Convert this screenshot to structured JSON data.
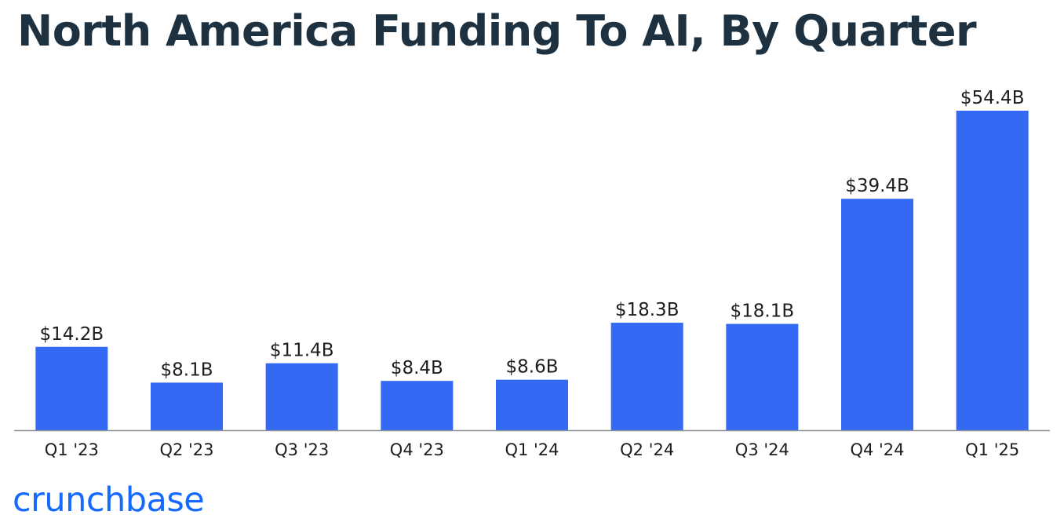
{
  "brand": {
    "name": "crunchbase",
    "color": "#146aff"
  },
  "chart_data": {
    "type": "bar",
    "title": "North America Funding To AI, By Quarter",
    "xlabel": "",
    "ylabel": "",
    "categories": [
      "Q1 '23",
      "Q2 '23",
      "Q3 '23",
      "Q4 '23",
      "Q1 '24",
      "Q2 '24",
      "Q3 '24",
      "Q4 '24",
      "Q1 '25"
    ],
    "values": [
      14.2,
      8.1,
      11.4,
      8.4,
      8.6,
      18.3,
      18.1,
      39.4,
      54.4
    ],
    "data_labels": [
      "$14.2B",
      "$8.1B",
      "$11.4B",
      "$8.4B",
      "$8.6B",
      "$18.3B",
      "$18.1B",
      "$39.4B",
      "$54.4B"
    ],
    "unit": "USD billions",
    "ylim": [
      0,
      54.4
    ],
    "grid": false,
    "legend": "none",
    "bar_color": "#3369f3",
    "axis_color": "#8a9299",
    "text_color": "#1d1d1d"
  }
}
